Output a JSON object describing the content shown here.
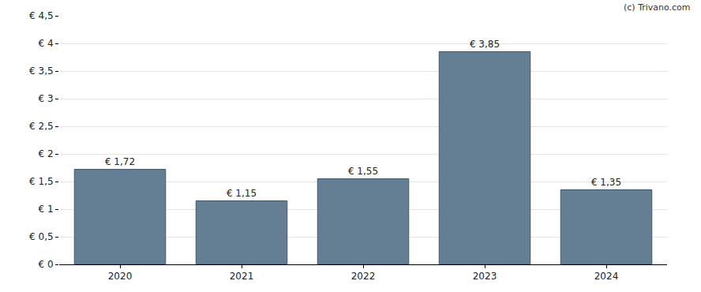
{
  "chart_data": {
    "type": "bar",
    "categories": [
      "2020",
      "2021",
      "2022",
      "2023",
      "2024"
    ],
    "values": [
      1.72,
      1.15,
      1.55,
      3.85,
      1.35
    ],
    "value_labels": [
      "€ 1,72",
      "€ 1,15",
      "€ 1,55",
      "€ 3,85",
      "€ 1,35"
    ],
    "data_labels": true,
    "color": "#647f93",
    "ylim": [
      0,
      4.5
    ],
    "yticks": [
      {
        "value": 0,
        "label": "€ 0"
      },
      {
        "value": 0.5,
        "label": "€ 0,5"
      },
      {
        "value": 1,
        "label": "€ 1"
      },
      {
        "value": 1.5,
        "label": "€ 1,5"
      },
      {
        "value": 2,
        "label": "€ 2"
      },
      {
        "value": 2.5,
        "label": "€ 2,5"
      },
      {
        "value": 3,
        "label": "€ 3"
      },
      {
        "value": 3.5,
        "label": "€ 3,5"
      },
      {
        "value": 4,
        "label": "€ 4"
      },
      {
        "value": 4.5,
        "label": "€ 4,5"
      }
    ],
    "grid": true,
    "annotations": [
      "(c) Trivano.com"
    ]
  }
}
